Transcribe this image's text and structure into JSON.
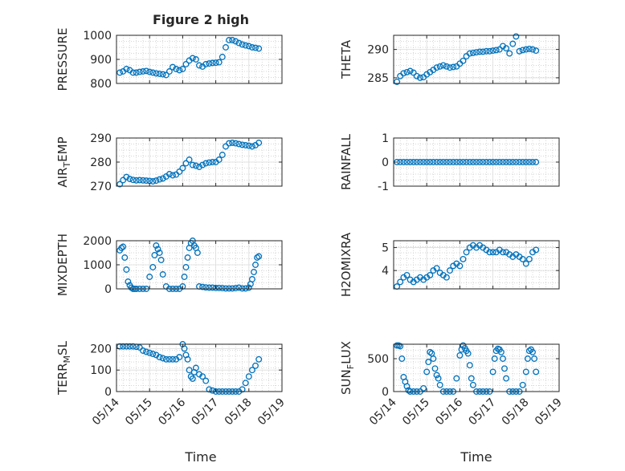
{
  "figure": {
    "title": "Figure 2 high",
    "xlabel": "Time"
  },
  "style": {
    "marker_color": "#0072BD",
    "axis_color": "#262626",
    "grid_color": "#c8c8c8",
    "background": "#ffffff"
  },
  "chart_data": [
    {
      "type": "scatter",
      "ylabel": "PRESSURE",
      "ylim": [
        800,
        1000
      ],
      "yticks": [
        800,
        900,
        1000
      ],
      "ytick_labels": [
        "800",
        "900",
        "1000"
      ],
      "xlim": [
        14,
        19
      ],
      "grid": true,
      "x": [
        14.1,
        14.2,
        14.3,
        14.4,
        14.5,
        14.6,
        14.7,
        14.8,
        14.9,
        15.0,
        15.1,
        15.2,
        15.3,
        15.4,
        15.5,
        15.6,
        15.7,
        15.8,
        15.9,
        16.0,
        16.1,
        16.2,
        16.3,
        16.4,
        16.5,
        16.6,
        16.7,
        16.8,
        16.9,
        17.0,
        17.1,
        17.2,
        17.3,
        17.4,
        17.5,
        17.6,
        17.7,
        17.8,
        17.9,
        18.0,
        18.1,
        18.2,
        18.3
      ],
      "y": [
        845,
        850,
        860,
        855,
        845,
        845,
        848,
        850,
        852,
        848,
        845,
        842,
        840,
        838,
        835,
        850,
        868,
        860,
        855,
        860,
        880,
        895,
        905,
        900,
        875,
        870,
        880,
        883,
        885,
        886,
        888,
        910,
        950,
        980,
        980,
        975,
        968,
        962,
        958,
        955,
        950,
        948,
        945
      ]
    },
    {
      "type": "scatter",
      "ylabel": "THETA",
      "ylim": [
        284,
        292.5
      ],
      "yticks": [
        285,
        290
      ],
      "ytick_labels": [
        "285",
        "290"
      ],
      "xlim": [
        14,
        19
      ],
      "grid": true,
      "x": [
        14.1,
        14.2,
        14.3,
        14.4,
        14.5,
        14.6,
        14.7,
        14.8,
        14.9,
        15.0,
        15.1,
        15.2,
        15.3,
        15.4,
        15.5,
        15.6,
        15.7,
        15.8,
        15.9,
        16.0,
        16.1,
        16.2,
        16.3,
        16.4,
        16.5,
        16.6,
        16.7,
        16.8,
        16.9,
        17.0,
        17.1,
        17.2,
        17.3,
        17.4,
        17.5,
        17.6,
        17.7,
        17.8,
        17.9,
        18.0,
        18.1,
        18.2,
        18.3
      ],
      "y": [
        284.3,
        285.3,
        285.8,
        286.0,
        286.2,
        285.9,
        285.3,
        285.0,
        285.1,
        285.6,
        286.0,
        286.4,
        286.8,
        287.0,
        287.2,
        287.0,
        286.8,
        286.9,
        287.0,
        287.5,
        288.0,
        288.8,
        289.3,
        289.4,
        289.5,
        289.6,
        289.6,
        289.7,
        289.7,
        289.8,
        289.9,
        290.0,
        290.6,
        290.2,
        289.3,
        291.0,
        292.3,
        289.7,
        289.9,
        290.0,
        290.1,
        290.0,
        289.8
      ]
    },
    {
      "type": "scatter",
      "ylabel": "AIR_T_EMP",
      "ylim": [
        270,
        290
      ],
      "yticks": [
        270,
        280,
        290
      ],
      "ytick_labels": [
        "270",
        "280",
        "290"
      ],
      "xlim": [
        14,
        19
      ],
      "grid": true,
      "x": [
        14.1,
        14.2,
        14.3,
        14.4,
        14.5,
        14.6,
        14.7,
        14.8,
        14.9,
        15.0,
        15.1,
        15.2,
        15.3,
        15.4,
        15.5,
        15.6,
        15.7,
        15.8,
        15.9,
        16.0,
        16.1,
        16.2,
        16.3,
        16.4,
        16.5,
        16.6,
        16.7,
        16.8,
        16.9,
        17.0,
        17.1,
        17.2,
        17.3,
        17.4,
        17.5,
        17.6,
        17.7,
        17.8,
        17.9,
        18.0,
        18.1,
        18.2,
        18.3
      ],
      "y": [
        270.8,
        272.5,
        273.8,
        273.0,
        272.6,
        272.4,
        272.5,
        272.4,
        272.3,
        272.2,
        272.0,
        272.3,
        272.8,
        273.2,
        274.0,
        275.0,
        274.5,
        274.8,
        276.0,
        277.5,
        279.5,
        281.0,
        278.8,
        278.5,
        278.0,
        278.8,
        279.5,
        279.8,
        280.0,
        280.0,
        281.0,
        283.0,
        286.5,
        287.8,
        288.0,
        287.8,
        287.5,
        287.2,
        287.0,
        286.8,
        286.5,
        287.0,
        288.0
      ]
    },
    {
      "type": "scatter",
      "ylabel": "RAINFALL",
      "ylim": [
        -1,
        1
      ],
      "yticks": [
        -1,
        0,
        1
      ],
      "ytick_labels": [
        "-1",
        "0",
        "1"
      ],
      "xlim": [
        14,
        19
      ],
      "grid": true,
      "x": [
        14.1,
        14.2,
        14.3,
        14.4,
        14.5,
        14.6,
        14.7,
        14.8,
        14.9,
        15.0,
        15.1,
        15.2,
        15.3,
        15.4,
        15.5,
        15.6,
        15.7,
        15.8,
        15.9,
        16.0,
        16.1,
        16.2,
        16.3,
        16.4,
        16.5,
        16.6,
        16.7,
        16.8,
        16.9,
        17.0,
        17.1,
        17.2,
        17.3,
        17.4,
        17.5,
        17.6,
        17.7,
        17.8,
        17.9,
        18.0,
        18.1,
        18.2,
        18.3
      ],
      "y": [
        0,
        0,
        0,
        0,
        0,
        0,
        0,
        0,
        0,
        0,
        0,
        0,
        0,
        0,
        0,
        0,
        0,
        0,
        0,
        0,
        0,
        0,
        0,
        0,
        0,
        0,
        0,
        0,
        0,
        0,
        0,
        0,
        0,
        0,
        0,
        0,
        0,
        0,
        0,
        0,
        0,
        0,
        0
      ]
    },
    {
      "type": "scatter",
      "ylabel": "MIXDEPTH",
      "ylim": [
        0,
        2000
      ],
      "yticks": [
        0,
        1000,
        2000
      ],
      "ytick_labels": [
        "0",
        "1000",
        "2000"
      ],
      "xlim": [
        14,
        19
      ],
      "grid": true,
      "x": [
        14.1,
        14.15,
        14.2,
        14.25,
        14.3,
        14.35,
        14.4,
        14.45,
        14.5,
        14.55,
        14.6,
        14.7,
        14.8,
        14.9,
        15.0,
        15.1,
        15.15,
        15.2,
        15.25,
        15.3,
        15.35,
        15.4,
        15.5,
        15.6,
        15.7,
        15.8,
        15.9,
        16.0,
        16.05,
        16.1,
        16.15,
        16.2,
        16.25,
        16.3,
        16.35,
        16.4,
        16.45,
        16.5,
        16.6,
        16.7,
        16.8,
        16.9,
        17.0,
        17.1,
        17.2,
        17.3,
        17.4,
        17.5,
        17.6,
        17.7,
        17.8,
        17.9,
        18.0,
        18.05,
        18.1,
        18.15,
        18.2,
        18.25,
        18.3
      ],
      "y": [
        1600,
        1700,
        1750,
        1300,
        800,
        300,
        150,
        50,
        0,
        0,
        0,
        0,
        0,
        0,
        500,
        900,
        1400,
        1800,
        1650,
        1500,
        1200,
        600,
        100,
        0,
        0,
        0,
        0,
        100,
        500,
        900,
        1300,
        1700,
        1900,
        2000,
        1800,
        1700,
        1500,
        100,
        80,
        60,
        50,
        50,
        40,
        40,
        30,
        20,
        20,
        20,
        30,
        50,
        20,
        20,
        50,
        200,
        400,
        700,
        1000,
        1300,
        1350
      ]
    },
    {
      "type": "scatter",
      "ylabel": "H2OMIXRA",
      "ylim": [
        3.2,
        5.3
      ],
      "yticks": [
        4,
        5
      ],
      "ytick_labels": [
        "4",
        "5"
      ],
      "xlim": [
        14,
        19
      ],
      "grid": true,
      "x": [
        14.1,
        14.2,
        14.3,
        14.4,
        14.5,
        14.6,
        14.7,
        14.8,
        14.9,
        15.0,
        15.1,
        15.2,
        15.3,
        15.4,
        15.5,
        15.6,
        15.7,
        15.8,
        15.9,
        16.0,
        16.1,
        16.2,
        16.3,
        16.4,
        16.5,
        16.6,
        16.7,
        16.8,
        16.9,
        17.0,
        17.1,
        17.2,
        17.3,
        17.4,
        17.5,
        17.6,
        17.7,
        17.8,
        17.9,
        18.0,
        18.1,
        18.2,
        18.3
      ],
      "y": [
        3.3,
        3.5,
        3.7,
        3.8,
        3.6,
        3.5,
        3.6,
        3.7,
        3.6,
        3.7,
        3.8,
        4.0,
        4.1,
        3.9,
        3.8,
        3.7,
        4.0,
        4.2,
        4.3,
        4.2,
        4.5,
        4.8,
        5.0,
        5.1,
        5.0,
        5.1,
        5.0,
        4.9,
        4.8,
        4.8,
        4.8,
        4.9,
        4.8,
        4.8,
        4.7,
        4.6,
        4.7,
        4.6,
        4.5,
        4.3,
        4.5,
        4.8,
        4.9
      ]
    },
    {
      "type": "scatter",
      "ylabel": "TERR_M_SL",
      "ylim": [
        0,
        220
      ],
      "yticks": [
        0,
        100,
        200
      ],
      "ytick_labels": [
        "0",
        "100",
        "200"
      ],
      "xlim": [
        14,
        19
      ],
      "grid": true,
      "x": [
        14.1,
        14.2,
        14.3,
        14.4,
        14.5,
        14.6,
        14.7,
        14.8,
        14.9,
        15.0,
        15.1,
        15.2,
        15.3,
        15.4,
        15.5,
        15.6,
        15.7,
        15.8,
        15.9,
        16.0,
        16.05,
        16.1,
        16.15,
        16.2,
        16.25,
        16.3,
        16.35,
        16.4,
        16.5,
        16.6,
        16.7,
        16.8,
        16.9,
        17.0,
        17.1,
        17.2,
        17.3,
        17.4,
        17.5,
        17.6,
        17.7,
        17.8,
        17.9,
        18.0,
        18.1,
        18.2,
        18.3
      ],
      "y": [
        210,
        210,
        210,
        210,
        210,
        208,
        205,
        190,
        185,
        180,
        175,
        170,
        160,
        155,
        150,
        150,
        150,
        150,
        160,
        220,
        200,
        170,
        150,
        100,
        70,
        60,
        90,
        110,
        80,
        70,
        50,
        10,
        5,
        0,
        0,
        0,
        0,
        0,
        0,
        0,
        0,
        10,
        40,
        70,
        100,
        120,
        150
      ]
    },
    {
      "type": "scatter",
      "ylabel": "SUN_F_LUX",
      "ylim": [
        0,
        720
      ],
      "yticks": [
        0,
        500
      ],
      "ytick_labels": [
        "0",
        "500"
      ],
      "xlim": [
        14,
        19
      ],
      "grid": true,
      "x": [
        14.1,
        14.15,
        14.2,
        14.25,
        14.3,
        14.35,
        14.4,
        14.45,
        14.5,
        14.6,
        14.7,
        14.8,
        14.9,
        15.0,
        15.05,
        15.1,
        15.15,
        15.2,
        15.25,
        15.3,
        15.35,
        15.4,
        15.5,
        15.6,
        15.7,
        15.8,
        15.9,
        16.0,
        16.05,
        16.1,
        16.15,
        16.2,
        16.25,
        16.3,
        16.35,
        16.4,
        16.5,
        16.6,
        16.7,
        16.8,
        16.9,
        17.0,
        17.05,
        17.1,
        17.15,
        17.2,
        17.25,
        17.3,
        17.35,
        17.4,
        17.5,
        17.6,
        17.7,
        17.8,
        17.9,
        18.0,
        18.05,
        18.1,
        18.15,
        18.2,
        18.25,
        18.3
      ],
      "y": [
        700,
        700,
        690,
        500,
        220,
        150,
        80,
        20,
        0,
        0,
        0,
        0,
        50,
        300,
        450,
        600,
        580,
        500,
        350,
        250,
        200,
        100,
        0,
        0,
        0,
        0,
        200,
        550,
        640,
        700,
        660,
        620,
        580,
        400,
        200,
        100,
        0,
        0,
        0,
        0,
        0,
        300,
        500,
        620,
        650,
        640,
        600,
        500,
        350,
        200,
        0,
        0,
        0,
        0,
        100,
        300,
        500,
        620,
        640,
        600,
        500,
        300
      ]
    }
  ],
  "x_axis": {
    "ticks": [
      14,
      15,
      16,
      17,
      18,
      19
    ],
    "tick_labels": [
      "05/14",
      "05/15",
      "05/16",
      "05/17",
      "05/18",
      "05/19"
    ]
  }
}
